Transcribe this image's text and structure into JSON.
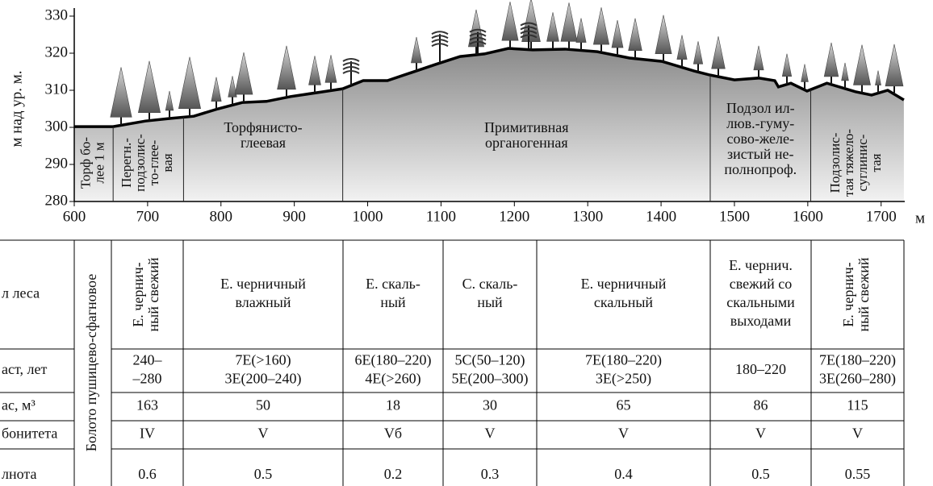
{
  "chart_data": {
    "type": "area",
    "y_label": "м над ур. м.",
    "x_label": "м",
    "xlim": [
      600,
      1730
    ],
    "ylim": [
      280,
      330
    ],
    "xticks": [
      600,
      700,
      800,
      900,
      1000,
      1100,
      1200,
      1300,
      1400,
      1500,
      1600,
      1700
    ],
    "yticks": [
      280,
      290,
      300,
      310,
      320,
      330
    ],
    "x": [
      600,
      653,
      697,
      730,
      763,
      796,
      829,
      862,
      895,
      939,
      966,
      994,
      1027,
      1060,
      1093,
      1126,
      1159,
      1192,
      1225,
      1269,
      1313,
      1357,
      1401,
      1445,
      1467,
      1500,
      1533,
      1555,
      1560,
      1577,
      1599,
      1626,
      1665,
      1687,
      1709,
      1731
    ],
    "values": [
      300.2,
      300.2,
      301.7,
      302.4,
      303,
      305,
      306.7,
      307,
      308.3,
      309.6,
      310.4,
      312.6,
      312.6,
      314.8,
      317,
      319.1,
      319.8,
      321.3,
      320.9,
      321.1,
      320.4,
      318.7,
      317.8,
      315.2,
      314.1,
      312.8,
      313.3,
      312.6,
      310.9,
      311.9,
      309.8,
      311.9,
      309.6,
      308.7,
      310,
      307.4
    ],
    "color": "#000000",
    "zones": [
      {
        "start": 600,
        "end": 653,
        "vertical": true,
        "lines": [
          "Торф бо-",
          "лее 1 м"
        ]
      },
      {
        "start": 653,
        "end": 749,
        "vertical": true,
        "lines": [
          "Перегн.-",
          "подзолис-",
          "то-глее-",
          "вая"
        ]
      },
      {
        "start": 749,
        "end": 966,
        "vertical": false,
        "lines": [
          "Торфянисто-",
          "глеевая"
        ]
      },
      {
        "start": 966,
        "end": 1467,
        "vertical": false,
        "lines": [
          "Примитивная",
          "органогенная"
        ]
      },
      {
        "start": 1467,
        "end": 1604,
        "vertical": false,
        "lines": [
          "Подзол ил-",
          "люв.-гуму-",
          "сово-желе-",
          "зистый не-",
          "полнопроф."
        ]
      },
      {
        "start": 1604,
        "end": 1730,
        "vertical": true,
        "lines": [
          "Подзолис-",
          "тая тяжело-",
          "суглинис-",
          "тая"
        ]
      }
    ]
  },
  "table": {
    "bog": "Болото пушицево-сфагновое",
    "rows": [
      {
        "header": "л леса",
        "cells": [
          [
            "Е. чернич-",
            "ный свежий"
          ],
          [
            "Е. черничный",
            "влажный"
          ],
          [
            "Е. скаль-",
            "ный"
          ],
          [
            "С. скаль-",
            "ный"
          ],
          [
            "Е. черничный",
            "скальный"
          ],
          [
            "Е. чернич.",
            "свежий со",
            "скальными",
            "выходами"
          ],
          [
            "Е. чернич-",
            "ный свежий"
          ]
        ]
      },
      {
        "header": "аст, лет",
        "cells": [
          [
            "240–",
            "–280"
          ],
          [
            "7Е(>160)",
            "3Е(200–240)"
          ],
          [
            "6Е(180–220)",
            "4Е(>260)"
          ],
          [
            "5С(50–120)",
            "5Е(200–300)"
          ],
          [
            "7Е(180–220)",
            "3Е(>250)"
          ],
          [
            "180–220"
          ],
          [
            "7Е(180–220)",
            "3Е(260–280)"
          ]
        ]
      },
      {
        "header": "ас, м³",
        "cells": [
          [
            "163"
          ],
          [
            "50"
          ],
          [
            "18"
          ],
          [
            "30"
          ],
          [
            "65"
          ],
          [
            "86"
          ],
          [
            "115"
          ]
        ]
      },
      {
        "header": "бонитета",
        "cells": [
          [
            "IV"
          ],
          [
            "V"
          ],
          [
            "Vб"
          ],
          [
            "V"
          ],
          [
            "V"
          ],
          [
            "V"
          ],
          [
            "V"
          ]
        ]
      },
      {
        "header": "лнота",
        "cells": [
          [
            "0.6"
          ],
          [
            "0.5"
          ],
          [
            "0.2"
          ],
          [
            "0.3"
          ],
          [
            "0.4"
          ],
          [
            "0.5"
          ],
          [
            "0.55"
          ]
        ]
      }
    ]
  }
}
